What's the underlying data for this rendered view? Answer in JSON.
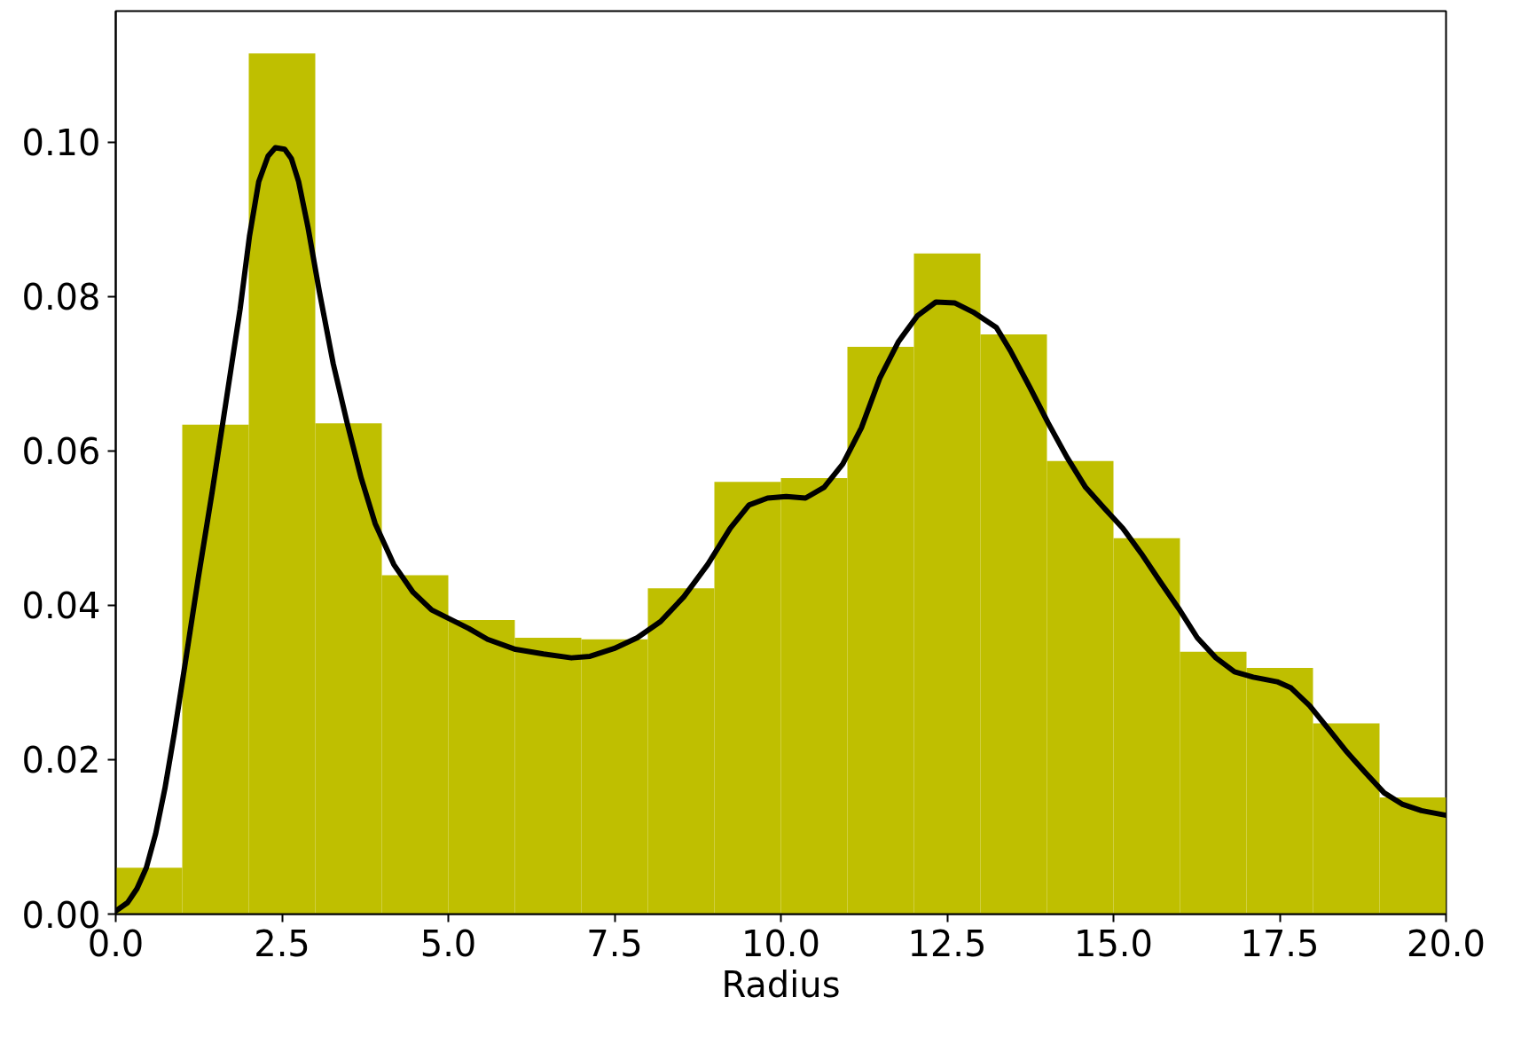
{
  "chart_data": {
    "type": "histogram",
    "xlabel": "Radius",
    "bins": [
      0,
      1,
      2,
      3,
      4,
      5,
      6,
      7,
      8,
      9,
      10,
      11,
      12,
      13,
      14,
      15,
      16,
      17,
      18,
      19,
      20
    ],
    "series": [
      {
        "color": "#bfbf00",
        "values": [
          0.006,
          0.0634,
          0.1115,
          0.0636,
          0.0439,
          0.0381,
          0.0358,
          0.0356,
          0.0422,
          0.056,
          0.0565,
          0.0735,
          0.0856,
          0.0751,
          0.0587,
          0.0487,
          0.034,
          0.0319,
          0.0247,
          0.0151
        ]
      },
      {
        "type": "line",
        "color": "#000000",
        "x": [
          0,
          0.18,
          0.32,
          0.46,
          0.6,
          0.74,
          0.88,
          1.03,
          1.24,
          1.45,
          1.66,
          1.87,
          2.01,
          2.15,
          2.29,
          2.4,
          2.54,
          2.64,
          2.75,
          2.89,
          3.06,
          3.27,
          3.48,
          3.69,
          3.9,
          4.18,
          4.47,
          4.75,
          5.03,
          5.31,
          5.59,
          6.01,
          6.43,
          6.85,
          7.13,
          7.49,
          7.84,
          8.19,
          8.54,
          8.9,
          9.24,
          9.52,
          9.8,
          10.08,
          10.37,
          10.65,
          10.93,
          11.21,
          11.49,
          11.77,
          12.05,
          12.33,
          12.61,
          12.89,
          13.24,
          13.45,
          13.74,
          14.02,
          14.3,
          14.58,
          14.86,
          15.14,
          15.42,
          15.7,
          15.98,
          16.26,
          16.54,
          16.82,
          17.1,
          17.46,
          17.67,
          17.95,
          18.23,
          18.51,
          18.79,
          19.07,
          19.35,
          19.63,
          20
        ],
        "values": [
          0.0004,
          0.0015,
          0.0033,
          0.006,
          0.0104,
          0.0163,
          0.0234,
          0.0317,
          0.0435,
          0.0547,
          0.0665,
          0.0784,
          0.0878,
          0.0949,
          0.0982,
          0.0993,
          0.0991,
          0.0979,
          0.0949,
          0.089,
          0.0807,
          0.0713,
          0.0636,
          0.0565,
          0.0506,
          0.0453,
          0.0417,
          0.0394,
          0.0382,
          0.037,
          0.0356,
          0.0343,
          0.0337,
          0.0332,
          0.0334,
          0.0344,
          0.0358,
          0.0379,
          0.0411,
          0.0453,
          0.05,
          0.053,
          0.0539,
          0.0541,
          0.0539,
          0.0553,
          0.0583,
          0.063,
          0.0695,
          0.0742,
          0.0775,
          0.0793,
          0.0792,
          0.078,
          0.076,
          0.073,
          0.0683,
          0.0636,
          0.0592,
          0.0553,
          0.0526,
          0.05,
          0.0467,
          0.0431,
          0.0396,
          0.0358,
          0.0332,
          0.0314,
          0.0307,
          0.0301,
          0.0293,
          0.027,
          0.024,
          0.021,
          0.0183,
          0.0157,
          0.0142,
          0.0134,
          0.0128
        ]
      }
    ],
    "xlim": [
      0,
      20
    ],
    "ylim": [
      0,
      0.117
    ],
    "xticks": [
      {
        "value": 0,
        "label": "0.0"
      },
      {
        "value": 2.5,
        "label": "2.5"
      },
      {
        "value": 5,
        "label": "5.0"
      },
      {
        "value": 7.5,
        "label": "7.5"
      },
      {
        "value": 10,
        "label": "10.0"
      },
      {
        "value": 12.5,
        "label": "12.5"
      },
      {
        "value": 15,
        "label": "15.0"
      },
      {
        "value": 17.5,
        "label": "17.5"
      },
      {
        "value": 20,
        "label": "20.0"
      }
    ],
    "yticks": [
      {
        "value": 0,
        "label": "0.00"
      },
      {
        "value": 0.02,
        "label": "0.02"
      },
      {
        "value": 0.04,
        "label": "0.04"
      },
      {
        "value": 0.06,
        "label": "0.06"
      },
      {
        "value": 0.08,
        "label": "0.08"
      },
      {
        "value": 0.1,
        "label": "0.10"
      }
    ]
  }
}
